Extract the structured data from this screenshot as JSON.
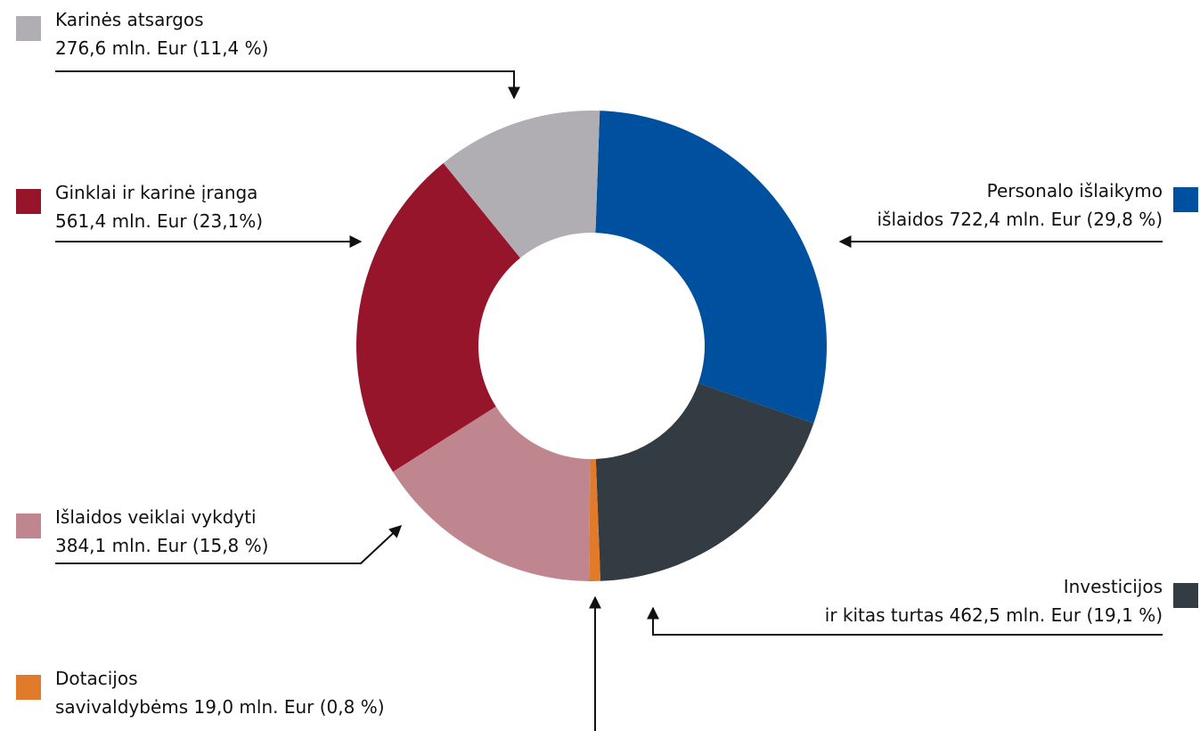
{
  "chart_data": {
    "type": "donut",
    "categories": [
      "Personalo išlaikymo\nišlaidos",
      "Investicijos\nir kitas turtas",
      "Dotacijos\nsavivaldybėms",
      "Išlaidos veiklai vykdyti",
      "Ginklai ir karinė įranga",
      "Karinės atsargos"
    ],
    "values": [
      722.4,
      462.5,
      19.0,
      384.1,
      561.4,
      276.6
    ],
    "value_labels": [
      "722,4 mln. Eur (29,8 %)",
      "462,5 mln. Eur (19,1 %)",
      "19,0 mln. Eur (0,8 %)",
      "384,1 mln. Eur (15,8 %)",
      "561,4 mln. Eur (23,1%)",
      "276,6 mln. Eur (11,4 %)"
    ],
    "colors": [
      "#0050a0",
      "#343c43",
      "#e07b2b",
      "#c0868f",
      "#96152a",
      "#b0aeb3"
    ]
  }
}
